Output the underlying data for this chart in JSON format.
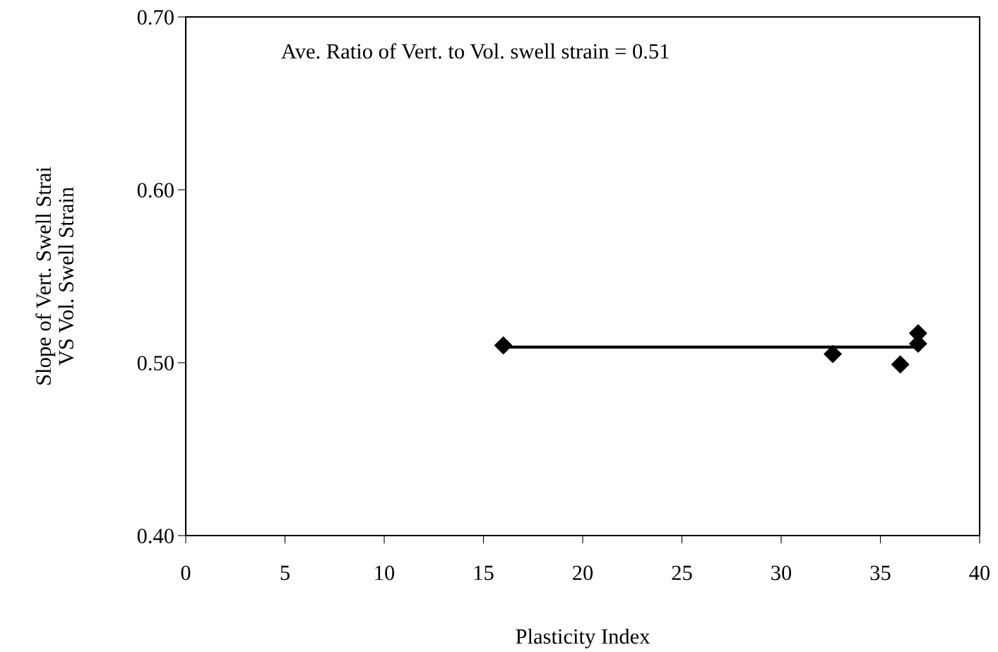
{
  "chart_data": {
    "type": "scatter",
    "xlabel": "Plasticity Index",
    "ylabel": "Slope of Vert. Swell Strai\nVS Vol. Swell Strain",
    "xlim": [
      0,
      40
    ],
    "xticks": [
      0,
      5,
      10,
      15,
      20,
      25,
      30,
      35,
      40
    ],
    "ylim": [
      0.4,
      0.7
    ],
    "yticks": [
      {
        "value": 0.4,
        "label": "0.40"
      },
      {
        "value": 0.5,
        "label": "0.50"
      },
      {
        "value": 0.6,
        "label": "0.60"
      },
      {
        "value": 0.7,
        "label": "0.70"
      }
    ],
    "grid": false,
    "legend": false,
    "series": [
      {
        "color": "#000000",
        "marker": "diamond",
        "x": [
          16.0,
          32.6,
          36.0,
          36.9,
          36.9
        ],
        "values": [
          0.51,
          0.505,
          0.499,
          0.517,
          0.511
        ]
      },
      {
        "type": "line",
        "color": "#000000",
        "marker": "none",
        "line_style": "solid",
        "x": [
          16.0,
          36.9
        ],
        "values": [
          0.509,
          0.509
        ]
      }
    ],
    "annotations": [
      "Ave. Ratio of Vert. to Vol. swell strain = 0.51"
    ]
  }
}
